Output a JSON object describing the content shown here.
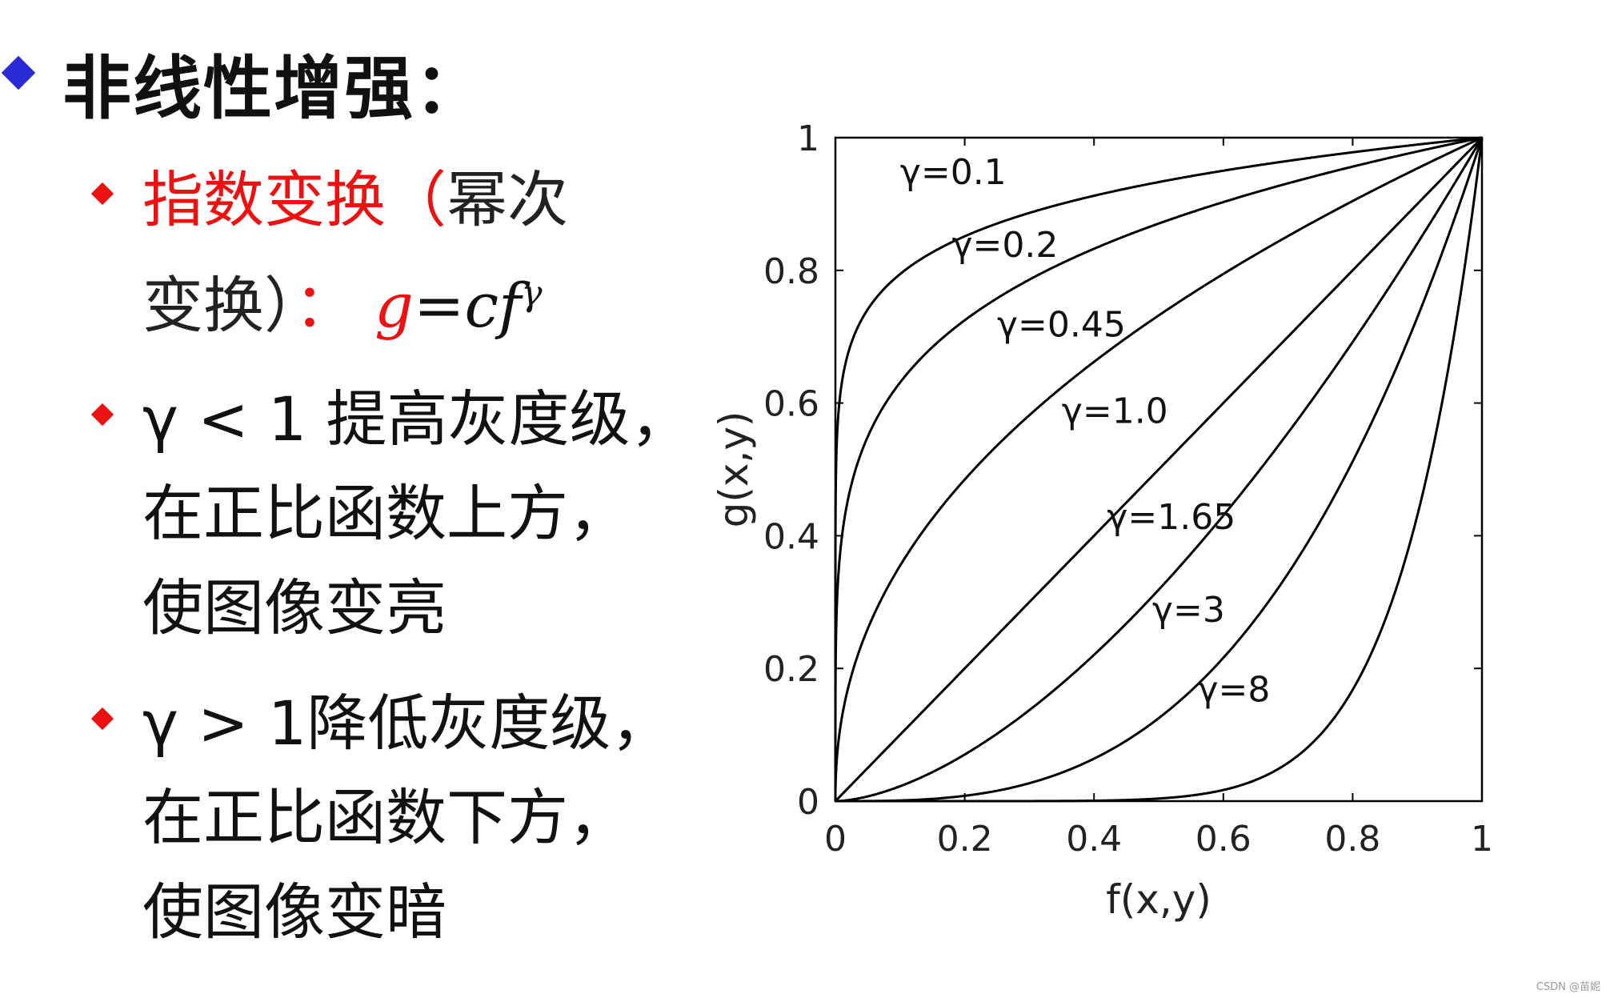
{
  "slide": {
    "title": "非线性增强：",
    "bullets": [
      {
        "lines": [
          {
            "parts": [
              {
                "text": "指数变换（",
                "color": "red"
              },
              {
                "text": "幂次",
                "color": "black"
              }
            ]
          },
          {
            "parts": [
              {
                "text": "变换）",
                "color": "black"
              },
              {
                "text": "：",
                "color": "red"
              },
              {
                "text": "g",
                "color": "red"
              },
              {
                "text": "=",
                "color": "black"
              },
              {
                "text": "cf",
                "color": "black"
              },
              {
                "text": "γ",
                "color": "black"
              }
            ]
          }
        ]
      },
      {
        "lines": [
          "γ < 1 提高灰度级，",
          "在正比函数上方，",
          "使图像变亮"
        ]
      },
      {
        "lines": [
          "γ > 1降低灰度级，",
          "在正比函数下方，",
          "使图像变暗"
        ]
      }
    ],
    "watermark": "CSDN @苗妮"
  },
  "chart_data": {
    "type": "line",
    "xlabel": "f(x,y)",
    "ylabel": "g(x,y)",
    "xlim": [
      0,
      1
    ],
    "ylim": [
      0,
      1
    ],
    "xticks": [
      "0",
      "0.2",
      "0.4",
      "0.6",
      "0.8",
      "1"
    ],
    "yticks": [
      "0",
      "0.2",
      "0.4",
      "0.6",
      "0.8",
      "1"
    ],
    "grid": false,
    "formula": "g = x^γ",
    "series": [
      {
        "name": "γ=0.1",
        "gamma": 0.1,
        "label_at": [
          0.1,
          0.93
        ]
      },
      {
        "name": "γ=0.2",
        "gamma": 0.2,
        "label_at": [
          0.18,
          0.82
        ]
      },
      {
        "name": "γ=0.45",
        "gamma": 0.45,
        "label_at": [
          0.25,
          0.7
        ]
      },
      {
        "name": "γ=1.0",
        "gamma": 1.0,
        "label_at": [
          0.35,
          0.57
        ]
      },
      {
        "name": "γ=1.65",
        "gamma": 1.65,
        "label_at": [
          0.42,
          0.41
        ]
      },
      {
        "name": "γ=3",
        "gamma": 3,
        "label_at": [
          0.49,
          0.27
        ]
      },
      {
        "name": "γ=8",
        "gamma": 8,
        "label_at": [
          0.56,
          0.15
        ]
      }
    ],
    "line_color": "#000000"
  }
}
